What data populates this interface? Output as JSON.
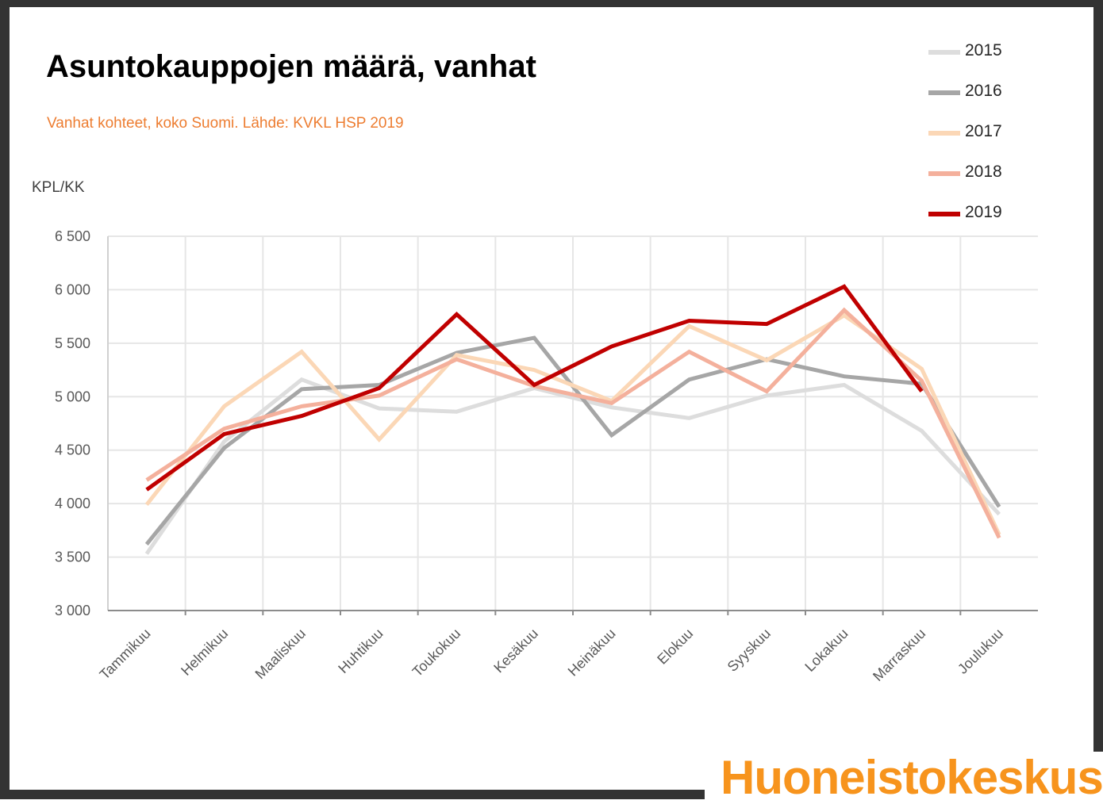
{
  "page": {
    "title": "Asuntokauppojen määrä, vanhat",
    "subtitle": "Vanhat kohteet, koko Suomi. Lähde: KVKL HSP 2019",
    "unit_label": "KPL/KK",
    "brand": "Huoneistokeskus"
  },
  "chart_data": {
    "type": "line",
    "title": "Asuntokauppojen määrä, vanhat",
    "subtitle": "Vanhat kohteet, koko Suomi. Lähde: KVKL HSP 2019",
    "ylabel": "KPL/KK",
    "xlabel": "",
    "ylim": [
      3000,
      6500
    ],
    "yticks": [
      3000,
      3500,
      4000,
      4500,
      5000,
      5500,
      6000,
      6500
    ],
    "ytick_labels": [
      "3 000",
      "3 500",
      "4 000",
      "4 500",
      "5 000",
      "5 500",
      "6 000",
      "6 500"
    ],
    "grid": true,
    "legend_position": "top-right",
    "categories": [
      "Tammikuu",
      "Helmikuu",
      "Maaliskuu",
      "Huhtikuu",
      "Toukokuu",
      "Kesäkuu",
      "Heinäkuu",
      "Elokuu",
      "Syyskuu",
      "Lokakuu",
      "Marraskuu",
      "Joulukuu"
    ],
    "series": [
      {
        "name": "2015",
        "color": "#dddddd",
        "values": [
          3530,
          4580,
          5160,
          4890,
          4860,
          5080,
          4900,
          4800,
          5010,
          5110,
          4680,
          3900
        ]
      },
      {
        "name": "2016",
        "color": "#a6a6a6",
        "values": [
          3620,
          4520,
          5070,
          5110,
          5410,
          5550,
          4640,
          5160,
          5350,
          5190,
          5120,
          3970
        ]
      },
      {
        "name": "2017",
        "color": "#fbd7b6",
        "values": [
          3990,
          4910,
          5420,
          4600,
          5390,
          5250,
          4960,
          5660,
          5340,
          5760,
          5260,
          3710
        ]
      },
      {
        "name": "2018",
        "color": "#f4b09c",
        "values": [
          4220,
          4700,
          4910,
          5010,
          5350,
          5100,
          4940,
          5420,
          5050,
          5810,
          5150,
          3680
        ]
      },
      {
        "name": "2019",
        "color": "#c00000",
        "values": [
          4130,
          4650,
          4820,
          5080,
          5770,
          5110,
          5470,
          5710,
          5680,
          6030,
          5050,
          null
        ]
      }
    ]
  }
}
